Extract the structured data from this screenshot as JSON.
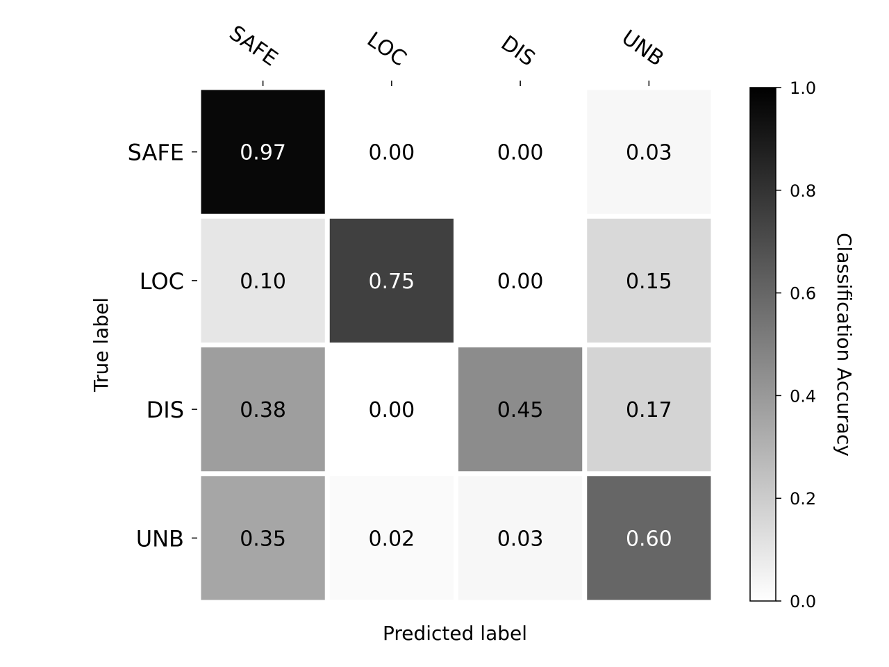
{
  "chart_data": {
    "type": "heatmap",
    "xlabel": "Predicted label",
    "ylabel": "True label",
    "x_categories": [
      "SAFE",
      "LOC",
      "DIS",
      "UNB"
    ],
    "y_categories": [
      "SAFE",
      "LOC",
      "DIS",
      "UNB"
    ],
    "values": [
      [
        0.97,
        0.0,
        0.0,
        0.03
      ],
      [
        0.1,
        0.75,
        0.0,
        0.15
      ],
      [
        0.38,
        0.0,
        0.45,
        0.17
      ],
      [
        0.35,
        0.02,
        0.03,
        0.6
      ]
    ],
    "value_labels": [
      [
        "0.97",
        "0.00",
        "0.00",
        "0.03"
      ],
      [
        "0.10",
        "0.75",
        "0.00",
        "0.15"
      ],
      [
        "0.38",
        "0.00",
        "0.45",
        "0.17"
      ],
      [
        "0.35",
        "0.02",
        "0.03",
        "0.60"
      ]
    ],
    "colormap": "Greys",
    "vmin": 0.0,
    "vmax": 1.0,
    "colorbar": {
      "label": "Classification Accuracy",
      "ticks": [
        0.0,
        0.2,
        0.4,
        0.6,
        0.8,
        1.0
      ],
      "tick_labels": [
        "0.0",
        "0.2",
        "0.4",
        "0.6",
        "0.8",
        "1.0"
      ]
    },
    "x_tick_position": "top"
  }
}
